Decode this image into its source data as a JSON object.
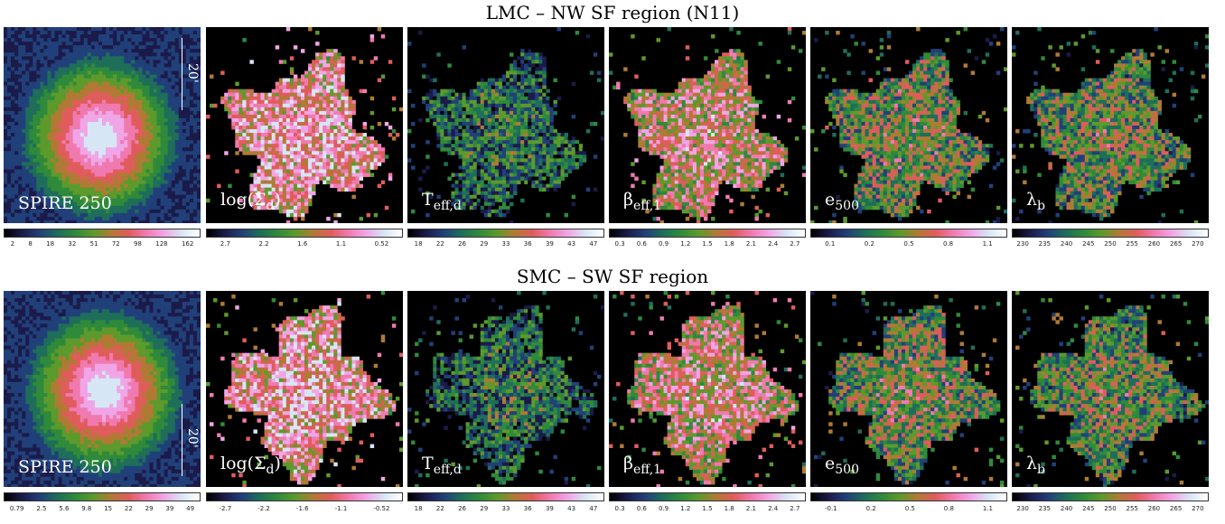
{
  "rows": [
    {
      "title": "LMC – NW SF region (N11)",
      "scale_label": "20'",
      "panels": [
        {
          "id": "spire",
          "label_main": "SPIRE 250",
          "label_sub": "",
          "ticks": [
            "2",
            "8",
            "18",
            "32",
            "51",
            "72",
            "98",
            "128",
            "162"
          ]
        },
        {
          "id": "logsigma",
          "label_main": "log(Σ",
          "label_sub": "d",
          "label_tail": ")",
          "ticks": [
            "2.7",
            "2.2",
            "1.6",
            "1.1",
            "0.52"
          ]
        },
        {
          "id": "teff",
          "label_main": "T",
          "label_sub": "eff,d",
          "ticks": [
            "18",
            "22",
            "26",
            "29",
            "33",
            "36",
            "39",
            "43",
            "47"
          ]
        },
        {
          "id": "beta",
          "label_main": "β",
          "label_sub": "eff,1",
          "ticks": [
            "0.3",
            "0.6",
            "0.9",
            "1.2",
            "1.5",
            "1.8",
            "2.1",
            "2.4",
            "2.7"
          ]
        },
        {
          "id": "e500",
          "label_main": "e",
          "label_sub": "500",
          "ticks": [
            "0.1",
            "0.2",
            "0.5",
            "0.8",
            "1.1"
          ]
        },
        {
          "id": "lambda",
          "label_main": "λ",
          "label_sub": "b",
          "ticks": [
            "230",
            "235",
            "240",
            "245",
            "250",
            "255",
            "260",
            "265",
            "270"
          ]
        }
      ]
    },
    {
      "title": "SMC – SW SF region",
      "scale_label": "20'",
      "panels": [
        {
          "id": "spire",
          "label_main": "SPIRE 250",
          "label_sub": "",
          "ticks": [
            "0.79",
            "2.5",
            "5.6",
            "9.8",
            "15",
            "22",
            "29",
            "39",
            "49"
          ]
        },
        {
          "id": "logsigma",
          "label_main": "log(Σ",
          "label_sub": "d",
          "label_tail": ")",
          "ticks": [
            "-2.7",
            "-2.2",
            "-1.6",
            "-1.1",
            "-0.52"
          ]
        },
        {
          "id": "teff",
          "label_main": "T",
          "label_sub": "eff,d",
          "ticks": [
            "18",
            "22",
            "26",
            "29",
            "33",
            "36",
            "39",
            "43",
            "47"
          ]
        },
        {
          "id": "beta",
          "label_main": "β",
          "label_sub": "eff,1",
          "ticks": [
            "0.3",
            "0.6",
            "0.9",
            "1.2",
            "1.5",
            "1.8",
            "2.1",
            "2.4",
            "2.7"
          ]
        },
        {
          "id": "e500",
          "label_main": "e",
          "label_sub": "500",
          "ticks": [
            "-0.1",
            "0.2",
            "0.5",
            "0.8",
            "1.1"
          ]
        },
        {
          "id": "lambda",
          "label_main": "λ",
          "label_sub": "b",
          "ticks": [
            "230",
            "235",
            "240",
            "245",
            "250",
            "255",
            "260",
            "265",
            "270"
          ]
        }
      ]
    }
  ],
  "colormap": [
    "#000000",
    "#1b1b4a",
    "#21407a",
    "#1e6e5a",
    "#2f8a3a",
    "#5c9a2c",
    "#b07a35",
    "#e05c5c",
    "#f07ab0",
    "#f0a6e6",
    "#d7e6f5",
    "#ffffff"
  ]
}
